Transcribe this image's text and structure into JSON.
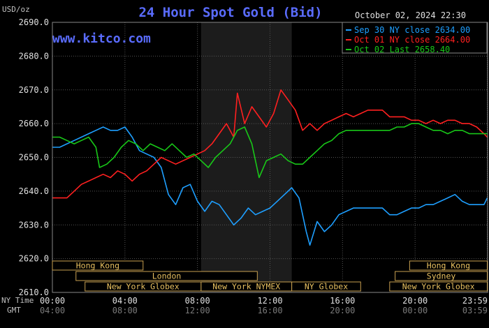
{
  "chart_data": {
    "type": "line",
    "title": "24 Hour Spot Gold (Bid)",
    "unit_label": "USD/oz",
    "timestamp": "October 02, 2024 22:30",
    "watermark": "www.kitco.com",
    "ylim": [
      2610,
      2690
    ],
    "y_ticks": [
      "2690.0",
      "2680.0",
      "2670.0",
      "2660.0",
      "2650.0",
      "2640.0",
      "2630.0",
      "2620.0",
      "2610.0"
    ],
    "y_tick_values": [
      2690,
      2680,
      2670,
      2660,
      2650,
      2640,
      2630,
      2620,
      2610
    ],
    "x_range_hours": [
      0,
      24
    ],
    "x_ticks_ny": [
      "00:00",
      "04:00",
      "08:00",
      "12:00",
      "16:00",
      "20:00",
      "23:59"
    ],
    "x_ticks_gmt": [
      "04:00",
      "08:00",
      "12:00",
      "16:00",
      "20:00",
      "00:00",
      "03:59"
    ],
    "x_tick_hours": [
      0,
      4,
      8,
      12,
      16,
      20,
      23.98
    ],
    "x_row_labels": [
      "NY Time",
      "GMT"
    ],
    "grid": true,
    "shaded_session_hours": [
      8.2,
      13.2
    ],
    "legend_position": "top-right",
    "legend": [
      {
        "label": "Sep 30 NY close 2634.00",
        "color": "#1e9fff"
      },
      {
        "label": "Oct 01 NY close 2664.00",
        "color": "#ff2020"
      },
      {
        "label": "Oct 02 Last 2658.40",
        "color": "#18c818"
      }
    ],
    "sessions": [
      {
        "label": "Hong Kong",
        "row": 0,
        "start": 0,
        "end": 5
      },
      {
        "label": "Hong Kong",
        "row": 0,
        "start": 19.7,
        "end": 23.98
      },
      {
        "label": "Sydney",
        "row": 1,
        "start": 18.9,
        "end": 23.98
      },
      {
        "label": "London",
        "row": 1,
        "start": 1.3,
        "end": 11.3
      },
      {
        "label": "New York Globex",
        "row": 2,
        "start": 1.8,
        "end": 8.2
      },
      {
        "label": "New York NYMEX",
        "row": 2,
        "start": 8.2,
        "end": 13.2
      },
      {
        "label": "NY Globex",
        "row": 2,
        "start": 13.2,
        "end": 17
      },
      {
        "label": "New York Globex",
        "row": 2,
        "start": 18.6,
        "end": 23.98
      }
    ],
    "series": [
      {
        "color": "#1e9fff",
        "x": [
          0,
          0.4,
          0.8,
          1.2,
          1.6,
          2.0,
          2.4,
          2.8,
          3.2,
          3.6,
          4.0,
          4.4,
          4.8,
          5.2,
          5.6,
          6.0,
          6.4,
          6.8,
          7.2,
          7.6,
          8.0,
          8.4,
          8.8,
          9.2,
          9.6,
          10.0,
          10.4,
          10.8,
          11.2,
          11.6,
          12.0,
          12.4,
          12.8,
          13.2,
          13.6,
          14.0,
          14.2,
          14.6,
          15.0,
          15.4,
          15.8,
          16.2,
          16.6,
          17.0,
          17.4,
          17.8,
          18.2,
          18.6,
          19.0,
          19.4,
          19.8,
          20.2,
          20.6,
          21.0,
          21.4,
          21.8,
          22.2,
          22.6,
          23.0,
          23.4,
          23.8,
          23.98
        ],
        "y": [
          2653,
          2653,
          2654,
          2655,
          2656,
          2657,
          2658,
          2659,
          2658,
          2658,
          2659,
          2656,
          2652,
          2651,
          2650,
          2647,
          2639,
          2636,
          2641,
          2642,
          2637,
          2634,
          2637,
          2636,
          2633,
          2630,
          2632,
          2635,
          2633,
          2634,
          2635,
          2637,
          2639,
          2641,
          2638,
          2628,
          2624,
          2631,
          2628,
          2630,
          2633,
          2634,
          2635,
          2635,
          2635,
          2635,
          2635,
          2633,
          2633,
          2634,
          2635,
          2635,
          2636,
          2636,
          2637,
          2638,
          2639,
          2637,
          2636,
          2636,
          2636,
          2638
        ]
      },
      {
        "color": "#ff2020",
        "x": [
          0,
          0.4,
          0.8,
          1.2,
          1.6,
          2.0,
          2.4,
          2.8,
          3.2,
          3.6,
          4.0,
          4.4,
          4.8,
          5.2,
          5.6,
          6.0,
          6.4,
          6.8,
          7.2,
          7.6,
          8.0,
          8.4,
          8.8,
          9.2,
          9.6,
          10.0,
          10.2,
          10.6,
          11.0,
          11.4,
          11.8,
          12.2,
          12.6,
          13.0,
          13.4,
          13.8,
          14.2,
          14.6,
          15.0,
          15.4,
          15.8,
          16.2,
          16.6,
          17.0,
          17.4,
          17.8,
          18.2,
          18.6,
          19.0,
          19.4,
          19.8,
          20.2,
          20.6,
          21.0,
          21.4,
          21.8,
          22.2,
          22.6,
          23.0,
          23.4,
          23.8,
          23.98
        ],
        "y": [
          2638,
          2638,
          2638,
          2640,
          2642,
          2643,
          2644,
          2645,
          2644,
          2646,
          2645,
          2643,
          2645,
          2646,
          2648,
          2650,
          2649,
          2648,
          2649,
          2650,
          2651,
          2652,
          2654,
          2657,
          2660,
          2656,
          2669,
          2660,
          2665,
          2662,
          2659,
          2663,
          2670,
          2667,
          2664,
          2658,
          2660,
          2658,
          2660,
          2661,
          2662,
          2663,
          2662,
          2663,
          2664,
          2664,
          2664,
          2662,
          2662,
          2662,
          2661,
          2661,
          2660,
          2661,
          2660,
          2661,
          2661,
          2660,
          2660,
          2659,
          2657,
          2656
        ]
      },
      {
        "color": "#18c818",
        "x": [
          0,
          0.4,
          0.8,
          1.2,
          1.6,
          2.0,
          2.4,
          2.6,
          3.0,
          3.4,
          3.8,
          4.2,
          4.6,
          5.0,
          5.4,
          5.8,
          6.2,
          6.6,
          7.0,
          7.4,
          7.8,
          8.2,
          8.6,
          9.0,
          9.4,
          9.8,
          10.2,
          10.6,
          11.0,
          11.4,
          11.8,
          12.2,
          12.6,
          13.0,
          13.4,
          13.8,
          14.2,
          14.6,
          15.0,
          15.4,
          15.8,
          16.2,
          16.6,
          17.0,
          17.4,
          17.8,
          18.2,
          18.6,
          19.0,
          19.4,
          19.8,
          20.2,
          20.6,
          21.0,
          21.4,
          21.8,
          22.2,
          22.6,
          23.0,
          23.4,
          23.98
        ],
        "y": [
          2656,
          2656,
          2655,
          2654,
          2655,
          2656,
          2653,
          2647,
          2648,
          2650,
          2653,
          2655,
          2654,
          2652,
          2654,
          2653,
          2652,
          2654,
          2652,
          2650,
          2651,
          2649,
          2647,
          2650,
          2652,
          2654,
          2658,
          2659,
          2654,
          2644,
          2649,
          2650,
          2651,
          2649,
          2648,
          2648,
          2650,
          2652,
          2654,
          2655,
          2657,
          2658,
          2658,
          2658,
          2658,
          2658,
          2658,
          2658,
          2659,
          2659,
          2660,
          2660,
          2659,
          2658,
          2658,
          2657,
          2658,
          2658,
          2657,
          2657,
          2657
        ]
      }
    ]
  }
}
